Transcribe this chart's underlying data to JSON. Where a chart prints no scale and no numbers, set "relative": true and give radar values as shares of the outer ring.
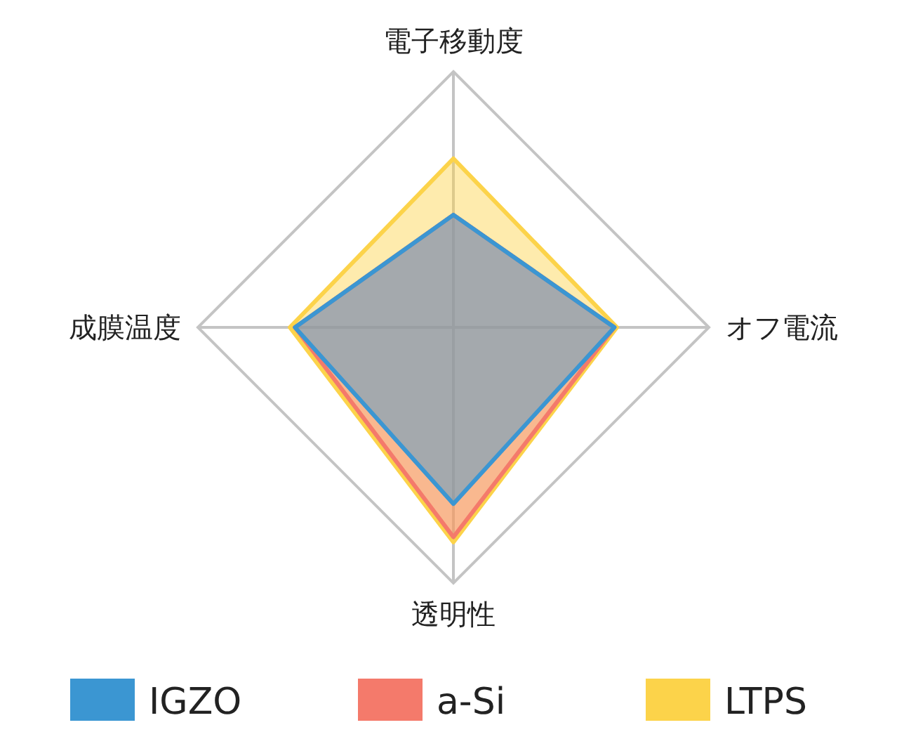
{
  "chart_data": {
    "type": "radar",
    "relative": true,
    "categories": [
      "電子移動度",
      "オフ電流",
      "透明性",
      "成膜温度"
    ],
    "legend": "bottom",
    "series": [
      {
        "name": "IGZO",
        "color": "#3b96d2",
        "values": [
          0.44,
          0.63,
          0.69,
          0.62
        ]
      },
      {
        "name": "a-Si",
        "color": "#f47a6b",
        "values": [
          0.44,
          0.63,
          0.82,
          0.62
        ]
      },
      {
        "name": "LTPS",
        "color": "#fcd34a",
        "values": [
          0.66,
          0.64,
          0.84,
          0.64
        ]
      }
    ]
  }
}
